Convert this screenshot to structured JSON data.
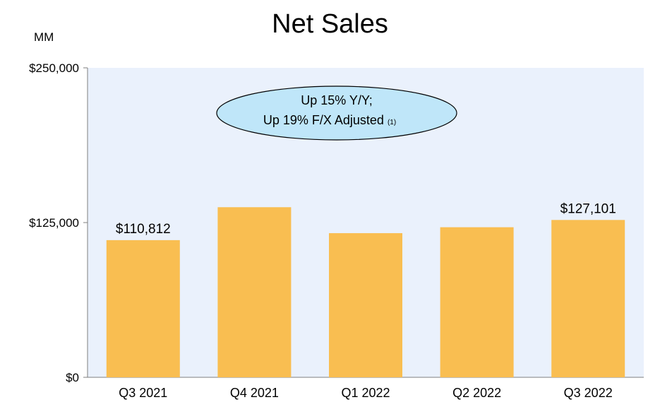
{
  "chart_data": {
    "type": "bar",
    "title": "Net Sales",
    "unit_label": "MM",
    "xlabel": "",
    "ylabel": "",
    "categories": [
      "Q3 2021",
      "Q4 2021",
      "Q1 2022",
      "Q2 2022",
      "Q3 2022"
    ],
    "values": [
      110812,
      137412,
      116444,
      121234,
      127101
    ],
    "data_labels": [
      "$110,812",
      "",
      "",
      "",
      "$127,101"
    ],
    "ylim": [
      0,
      250000
    ],
    "yticks": [
      0,
      125000,
      250000
    ],
    "ytick_labels": [
      "$0",
      "$125,000",
      "$250,000"
    ],
    "grid": false,
    "colors": {
      "bar": "#F9BE51",
      "plot_background": "#EAF1FC",
      "callout_fill": "#BFE6F9"
    },
    "annotation": {
      "line1": "Up 15% Y/Y;",
      "line2": "Up 19% F/X Adjusted",
      "footnote": "(1)"
    }
  }
}
